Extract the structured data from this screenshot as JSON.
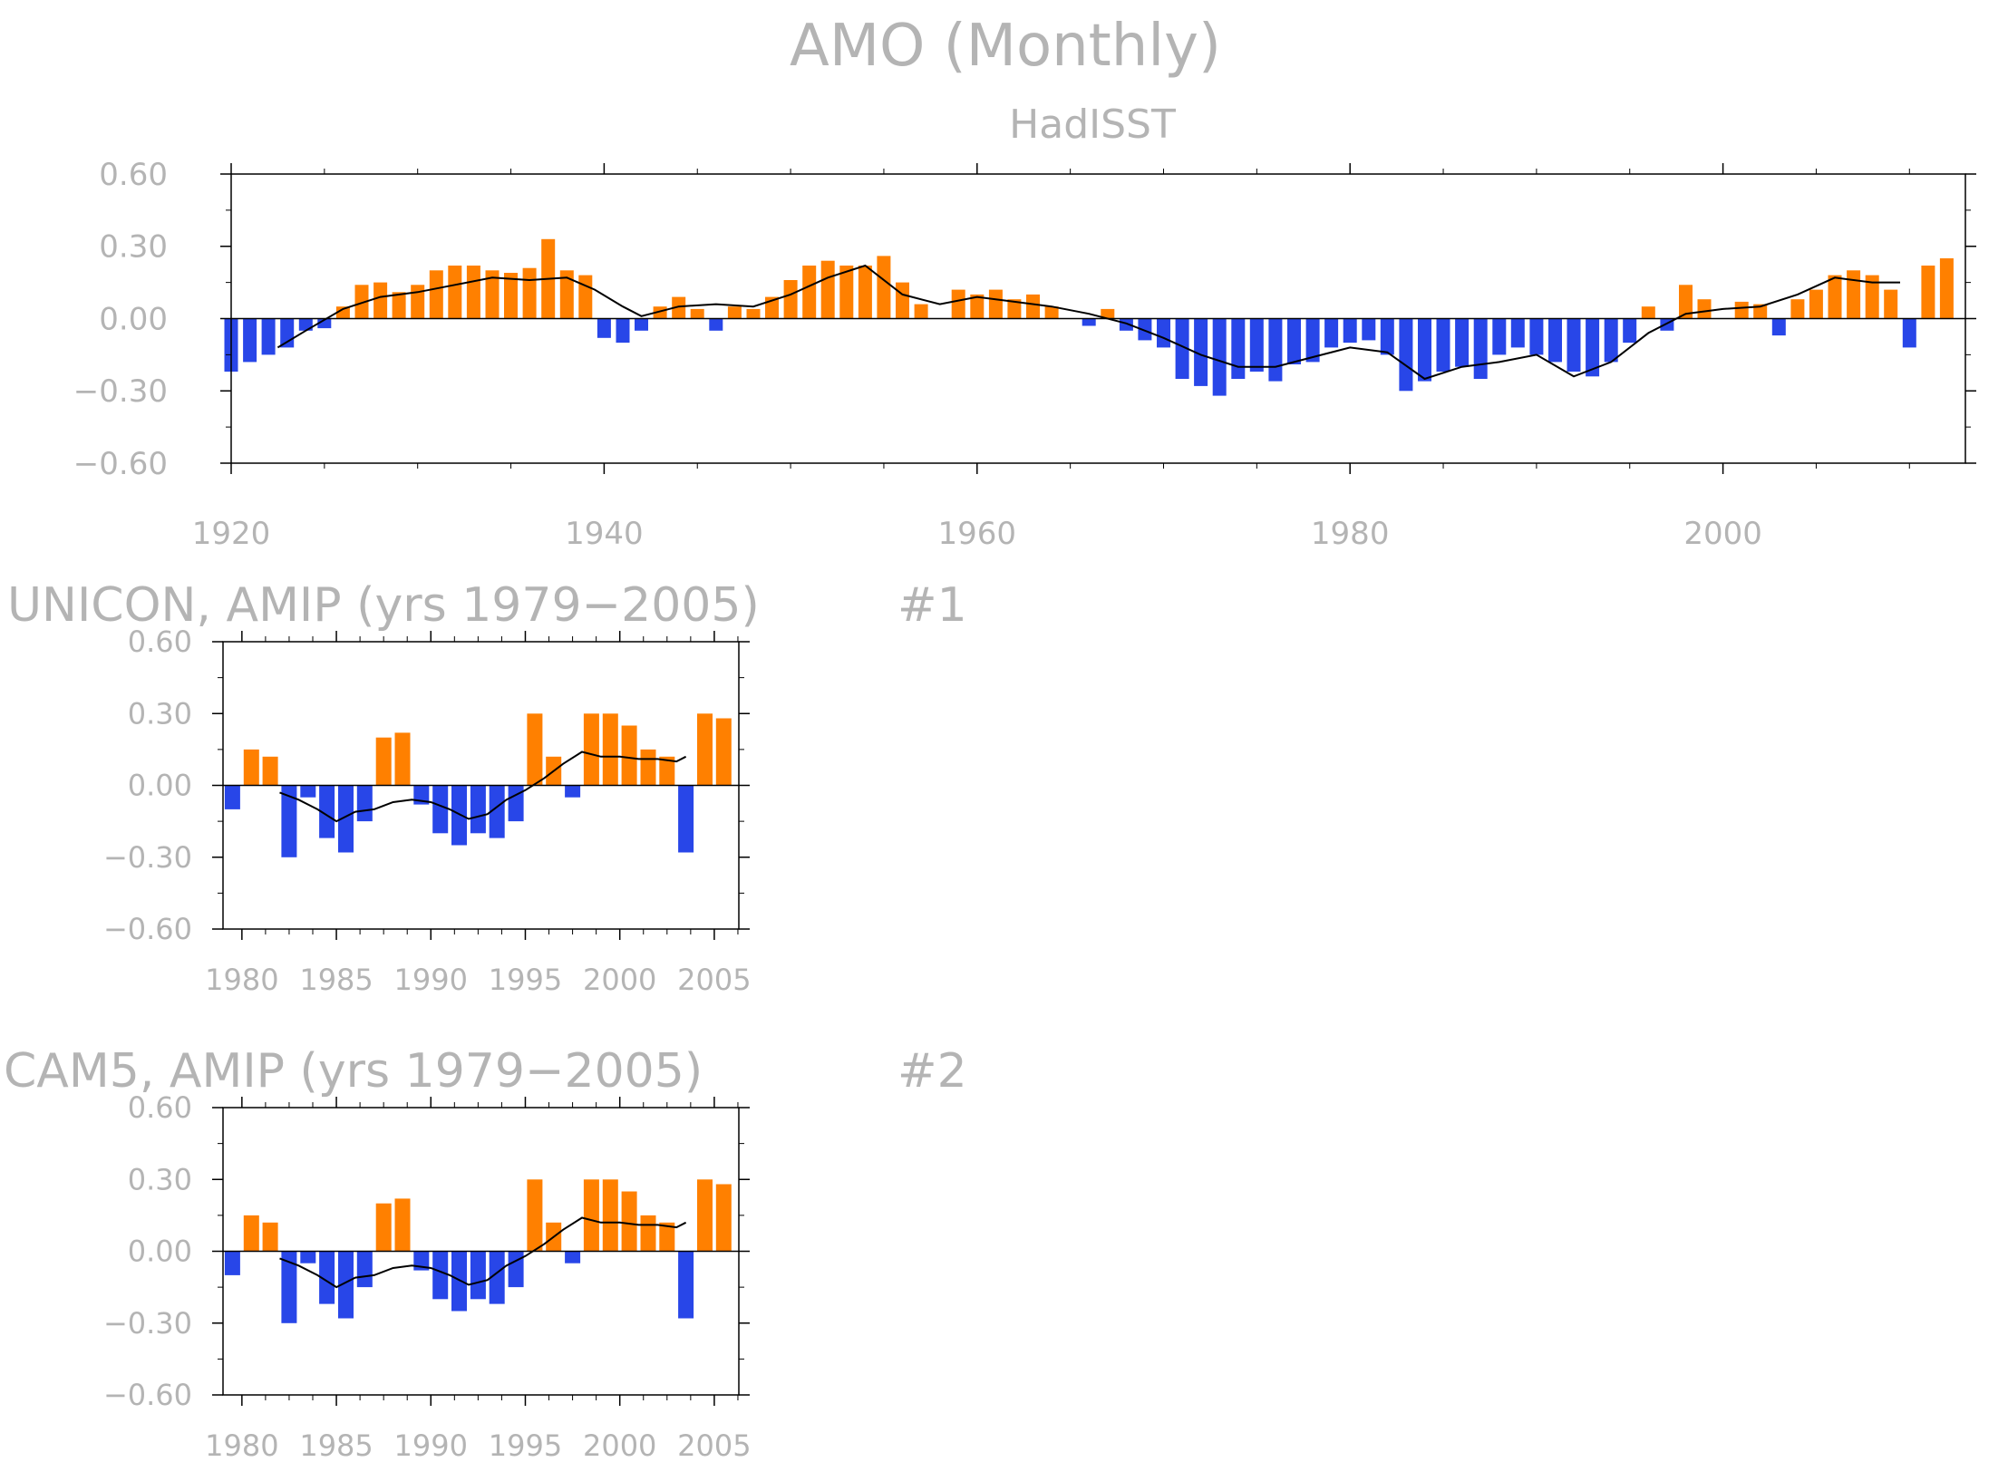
{
  "page": {
    "title": "AMO (Monthly)"
  },
  "colors": {
    "positive": "#ff8000",
    "negative": "#2846e8",
    "smooth_line": "#000000",
    "text": "#b4b4b4",
    "frame": "#000000"
  },
  "chart_data": [
    {
      "type": "bar",
      "title": "HadISST",
      "label_right": "",
      "xlabel": "",
      "ylabel": "",
      "xlim": [
        1920,
        2013
      ],
      "ylim": [
        -0.6,
        0.6
      ],
      "x_ticks": [
        1920,
        1940,
        1960,
        1980,
        2000
      ],
      "x_tick_labels": [
        "1920",
        "1940",
        "1960",
        "1980",
        "2000"
      ],
      "y_ticks": [
        0.6,
        0.3,
        0.0,
        -0.3,
        -0.6
      ],
      "y_tick_labels": [
        "0.60",
        "0.30",
        "0.00",
        "−0.30",
        "−0.60"
      ],
      "grid": false,
      "series": [
        {
          "kind": "monthly-anomaly-bars",
          "x": [
            1920,
            1921,
            1922,
            1923,
            1924,
            1925,
            1926,
            1927,
            1928,
            1929,
            1930,
            1931,
            1932,
            1933,
            1934,
            1935,
            1936,
            1937,
            1938,
            1939,
            1940,
            1941,
            1942,
            1943,
            1944,
            1945,
            1946,
            1947,
            1948,
            1949,
            1950,
            1951,
            1952,
            1953,
            1954,
            1955,
            1956,
            1957,
            1958,
            1959,
            1960,
            1961,
            1962,
            1963,
            1964,
            1965,
            1966,
            1967,
            1968,
            1969,
            1970,
            1971,
            1972,
            1973,
            1974,
            1975,
            1976,
            1977,
            1978,
            1979,
            1980,
            1981,
            1982,
            1983,
            1984,
            1985,
            1986,
            1987,
            1988,
            1989,
            1990,
            1991,
            1992,
            1993,
            1994,
            1995,
            1996,
            1997,
            1998,
            1999,
            2000,
            2001,
            2002,
            2003,
            2004,
            2005,
            2006,
            2007,
            2008,
            2009,
            2010,
            2011,
            2012
          ],
          "values": [
            -0.22,
            -0.18,
            -0.15,
            -0.12,
            -0.05,
            -0.04,
            0.05,
            0.14,
            0.15,
            0.11,
            0.14,
            0.2,
            0.22,
            0.22,
            0.2,
            0.19,
            0.21,
            0.33,
            0.2,
            0.18,
            -0.08,
            -0.1,
            -0.05,
            0.05,
            0.09,
            0.04,
            -0.05,
            0.05,
            0.04,
            0.09,
            0.16,
            0.22,
            0.24,
            0.22,
            0.22,
            0.26,
            0.15,
            0.06,
            0.0,
            0.12,
            0.1,
            0.12,
            0.08,
            0.1,
            0.05,
            0.0,
            -0.03,
            0.04,
            -0.05,
            -0.09,
            -0.12,
            -0.25,
            -0.28,
            -0.32,
            -0.25,
            -0.22,
            -0.26,
            -0.19,
            -0.18,
            -0.12,
            -0.1,
            -0.09,
            -0.15,
            -0.3,
            -0.26,
            -0.22,
            -0.2,
            -0.25,
            -0.15,
            -0.12,
            -0.15,
            -0.18,
            -0.22,
            -0.24,
            -0.18,
            -0.1,
            0.05,
            -0.05,
            0.14,
            0.08,
            0.0,
            0.07,
            0.06,
            -0.07,
            0.08,
            0.12,
            0.18,
            0.2,
            0.18,
            0.12,
            -0.12,
            0.22,
            0.25
          ]
        },
        {
          "kind": "smoothed-line",
          "x": [
            1922.5,
            1924,
            1926,
            1928,
            1930,
            1932,
            1934,
            1936,
            1938,
            1939.5,
            1941,
            1942,
            1944,
            1946,
            1948,
            1950,
            1952,
            1954,
            1956,
            1958,
            1960,
            1962,
            1964,
            1966,
            1968,
            1970,
            1972,
            1974,
            1976,
            1978,
            1980,
            1982,
            1984,
            1986,
            1988,
            1990,
            1992,
            1994,
            1996,
            1998,
            2000,
            2002,
            2004,
            2006,
            2008,
            2009.5
          ],
          "values": [
            -0.12,
            -0.05,
            0.04,
            0.09,
            0.11,
            0.14,
            0.17,
            0.16,
            0.17,
            0.12,
            0.05,
            0.01,
            0.05,
            0.06,
            0.05,
            0.1,
            0.17,
            0.22,
            0.1,
            0.06,
            0.09,
            0.07,
            0.05,
            0.02,
            -0.02,
            -0.08,
            -0.15,
            -0.2,
            -0.2,
            -0.16,
            -0.12,
            -0.14,
            -0.25,
            -0.2,
            -0.18,
            -0.15,
            -0.24,
            -0.18,
            -0.06,
            0.02,
            0.04,
            0.05,
            0.1,
            0.17,
            0.15,
            0.15
          ]
        }
      ]
    },
    {
      "type": "bar",
      "title": "UNICON, AMIP (yrs 1979−2005)",
      "label_right": "#1",
      "xlabel": "",
      "ylabel": "",
      "xlim": [
        1979,
        2006.3
      ],
      "ylim": [
        -0.6,
        0.6
      ],
      "x_ticks": [
        1980,
        1985,
        1990,
        1995,
        2000,
        2005
      ],
      "x_tick_labels": [
        "1980",
        "1985",
        "1990",
        "1995",
        "2000",
        "2005"
      ],
      "y_ticks": [
        0.6,
        0.3,
        0.0,
        -0.3,
        -0.6
      ],
      "y_tick_labels": [
        "0.60",
        "0.30",
        "0.00",
        "−0.30",
        "−0.60"
      ],
      "grid": false,
      "series": [
        {
          "kind": "monthly-anomaly-bars",
          "x": [
            1979.5,
            1980.5,
            1981.5,
            1982.5,
            1983.5,
            1984.5,
            1985.5,
            1986.5,
            1987.5,
            1988.5,
            1989.5,
            1990.5,
            1991.5,
            1992.5,
            1993.5,
            1994.5,
            1995.5,
            1996.5,
            1997.5,
            1998.5,
            1999.5,
            2000.5,
            2001.5,
            2002.5,
            2003.5,
            2004.5,
            2005.5
          ],
          "values": [
            -0.1,
            0.15,
            0.12,
            -0.3,
            -0.05,
            -0.22,
            -0.28,
            -0.15,
            0.2,
            0.22,
            -0.08,
            -0.2,
            -0.25,
            -0.2,
            -0.22,
            -0.15,
            0.3,
            0.12,
            -0.05,
            0.3,
            0.3,
            0.25,
            0.15,
            0.12,
            -0.28,
            0.3,
            0.28
          ]
        },
        {
          "kind": "smoothed-line",
          "x": [
            1982,
            1983,
            1984,
            1985,
            1986,
            1987,
            1988,
            1989,
            1990,
            1991,
            1992,
            1993,
            1994,
            1995,
            1996,
            1997,
            1998,
            1999,
            2000,
            2001,
            2002,
            2003,
            2003.5
          ],
          "values": [
            -0.03,
            -0.06,
            -0.1,
            -0.15,
            -0.11,
            -0.1,
            -0.07,
            -0.06,
            -0.07,
            -0.1,
            -0.14,
            -0.12,
            -0.06,
            -0.02,
            0.03,
            0.09,
            0.14,
            0.12,
            0.12,
            0.11,
            0.11,
            0.1,
            0.12
          ]
        }
      ]
    },
    {
      "type": "bar",
      "title": "CAM5, AMIP (yrs 1979−2005)",
      "label_right": "#2",
      "xlabel": "",
      "ylabel": "",
      "xlim": [
        1979,
        2006.3
      ],
      "ylim": [
        -0.6,
        0.6
      ],
      "x_ticks": [
        1980,
        1985,
        1990,
        1995,
        2000,
        2005
      ],
      "x_tick_labels": [
        "1980",
        "1985",
        "1990",
        "1995",
        "2000",
        "2005"
      ],
      "y_ticks": [
        0.6,
        0.3,
        0.0,
        -0.3,
        -0.6
      ],
      "y_tick_labels": [
        "0.60",
        "0.30",
        "0.00",
        "−0.30",
        "−0.60"
      ],
      "grid": false,
      "series": [
        {
          "kind": "monthly-anomaly-bars",
          "x": [
            1979.5,
            1980.5,
            1981.5,
            1982.5,
            1983.5,
            1984.5,
            1985.5,
            1986.5,
            1987.5,
            1988.5,
            1989.5,
            1990.5,
            1991.5,
            1992.5,
            1993.5,
            1994.5,
            1995.5,
            1996.5,
            1997.5,
            1998.5,
            1999.5,
            2000.5,
            2001.5,
            2002.5,
            2003.5,
            2004.5,
            2005.5
          ],
          "values": [
            -0.1,
            0.15,
            0.12,
            -0.3,
            -0.05,
            -0.22,
            -0.28,
            -0.15,
            0.2,
            0.22,
            -0.08,
            -0.2,
            -0.25,
            -0.2,
            -0.22,
            -0.15,
            0.3,
            0.12,
            -0.05,
            0.3,
            0.3,
            0.25,
            0.15,
            0.12,
            -0.28,
            0.3,
            0.28
          ]
        },
        {
          "kind": "smoothed-line",
          "x": [
            1982,
            1983,
            1984,
            1985,
            1986,
            1987,
            1988,
            1989,
            1990,
            1991,
            1992,
            1993,
            1994,
            1995,
            1996,
            1997,
            1998,
            1999,
            2000,
            2001,
            2002,
            2003,
            2003.5
          ],
          "values": [
            -0.03,
            -0.06,
            -0.1,
            -0.15,
            -0.11,
            -0.1,
            -0.07,
            -0.06,
            -0.07,
            -0.1,
            -0.14,
            -0.12,
            -0.06,
            -0.02,
            0.03,
            0.09,
            0.14,
            0.12,
            0.12,
            0.11,
            0.11,
            0.1,
            0.12
          ]
        }
      ]
    }
  ]
}
